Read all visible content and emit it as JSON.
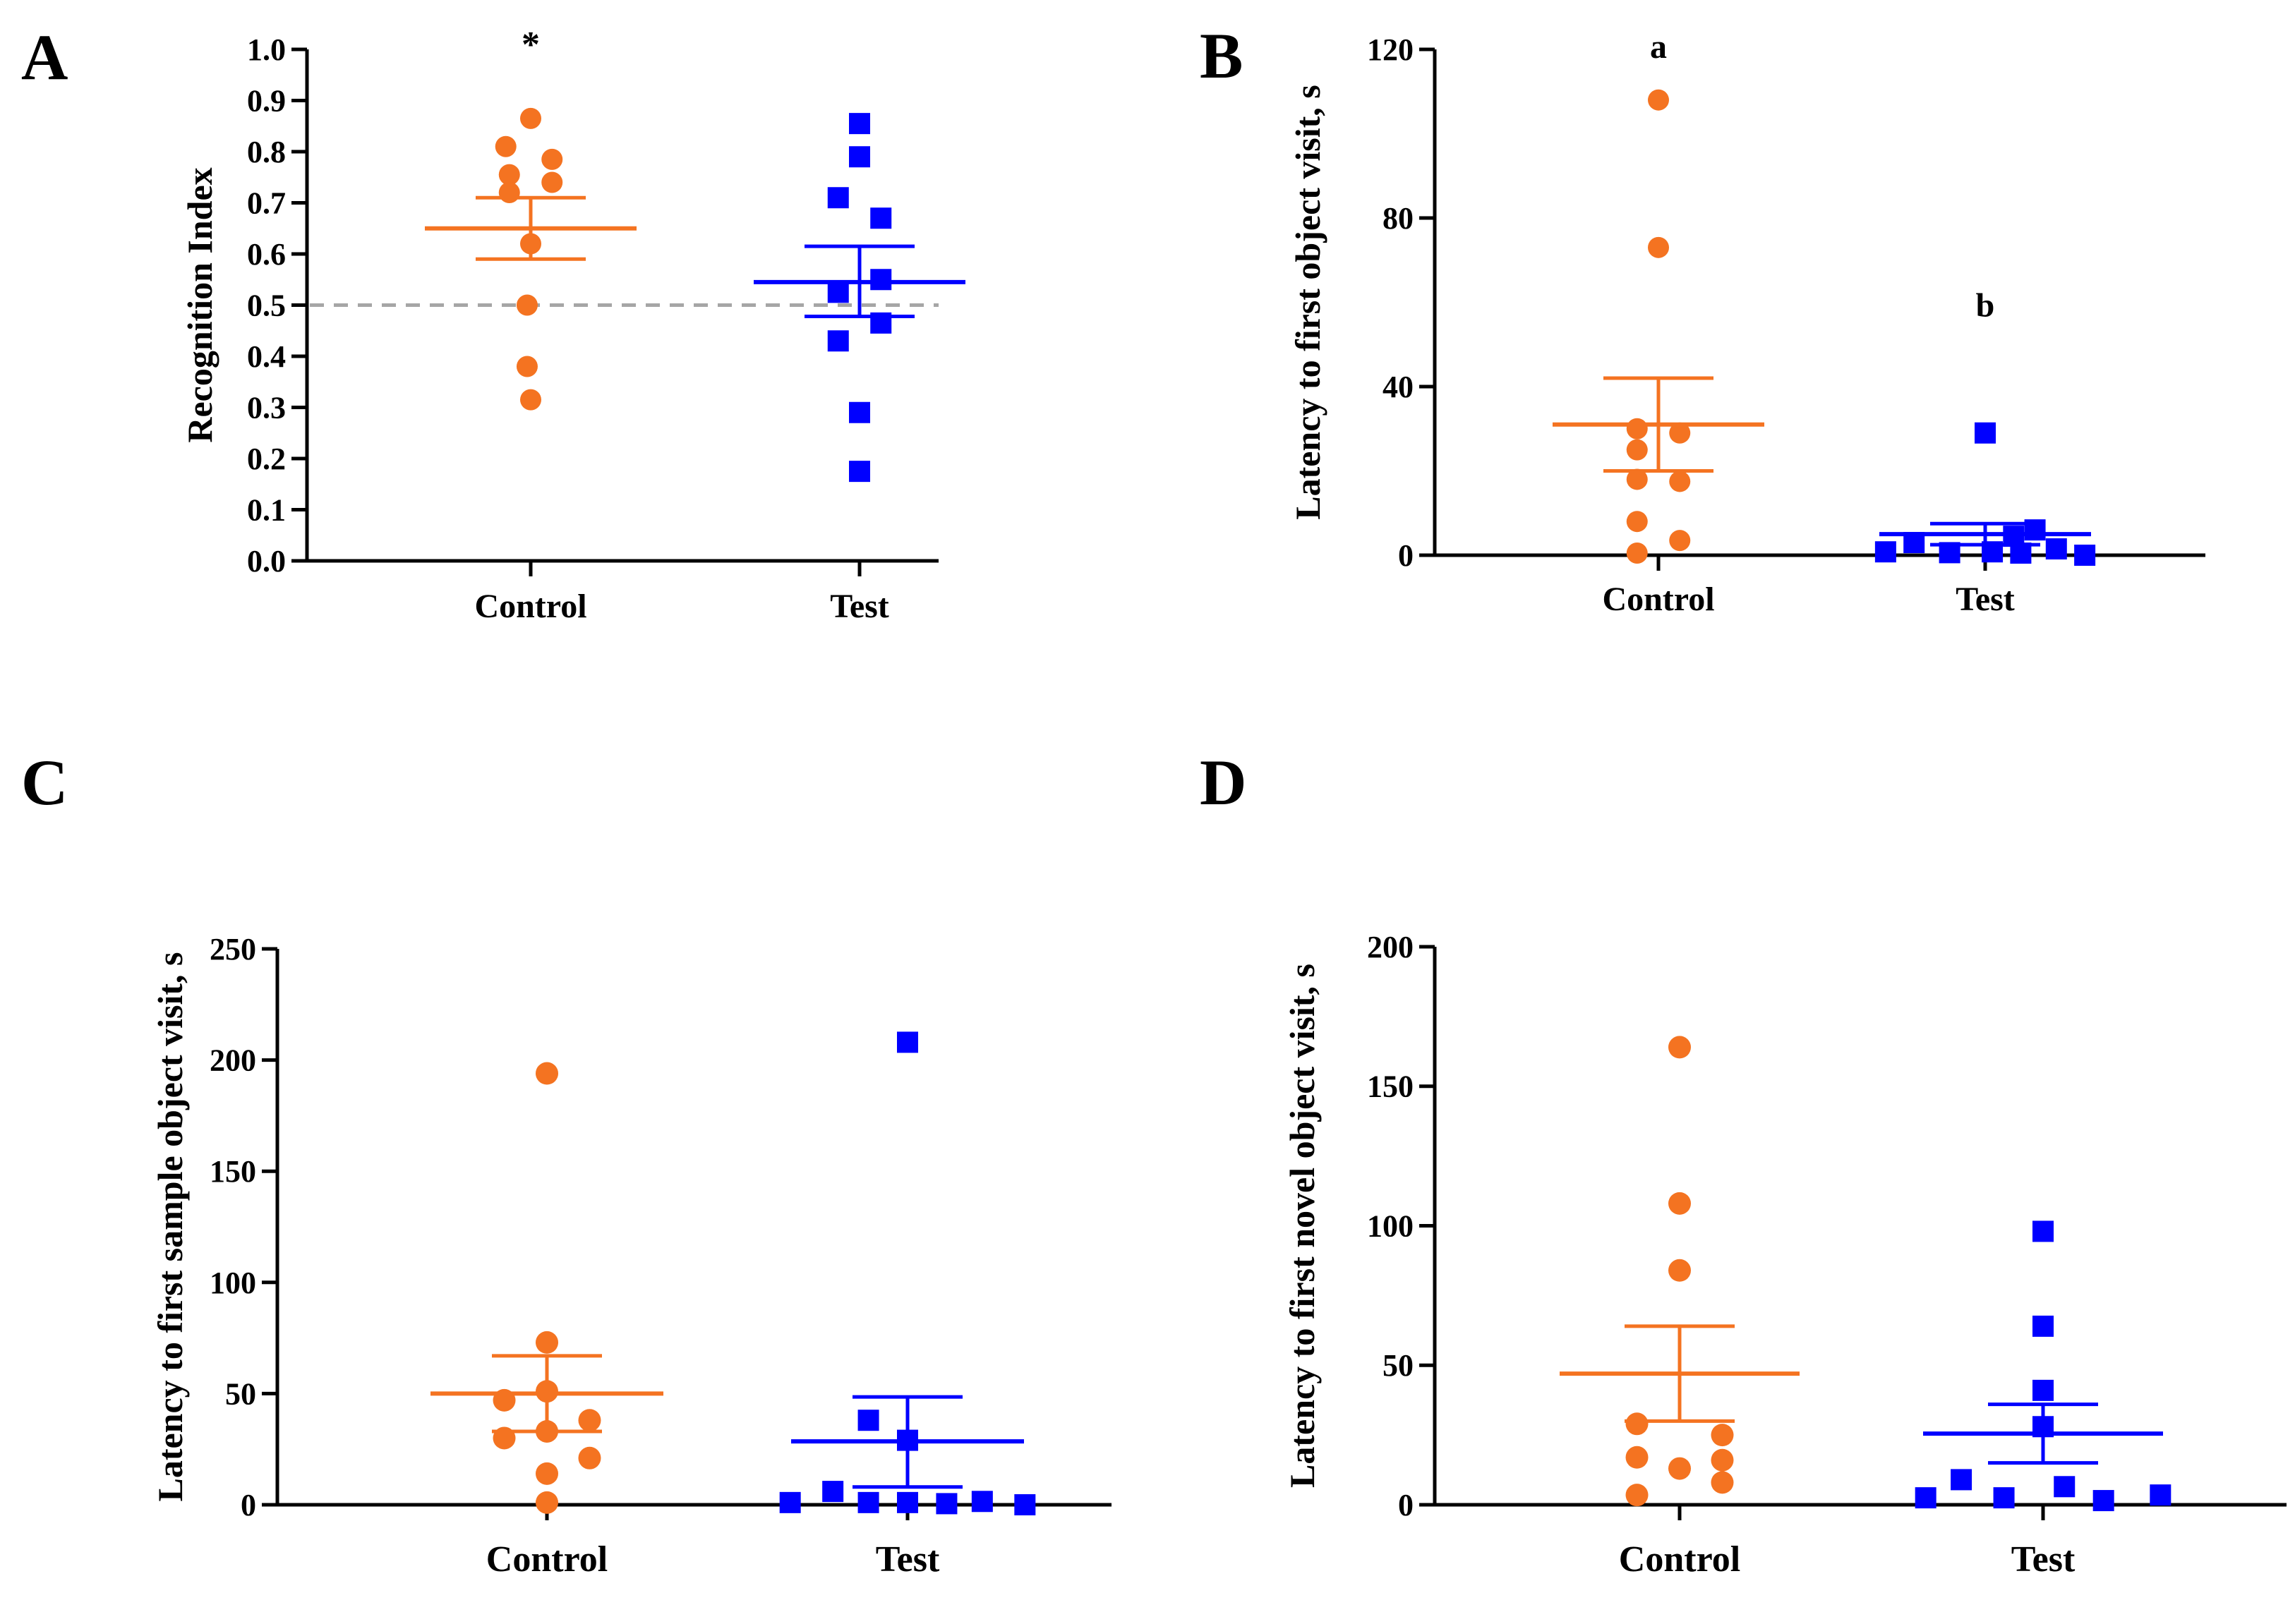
{
  "figure": {
    "colors": {
      "control": "#F47321",
      "test": "#0000FF",
      "axis": "#000000",
      "refline": "#A6A6A6"
    }
  },
  "chart_data": [
    {
      "panel": "A",
      "type": "scatter",
      "ylabel": "Recognition  Index",
      "ylim": [
        0,
        1.0
      ],
      "yticks": [
        0.0,
        0.1,
        0.2,
        0.3,
        0.4,
        0.5,
        0.6,
        0.7,
        0.8,
        0.9,
        1.0
      ],
      "ytick_labels": [
        "0.0",
        "0.1",
        "0.2",
        "0.3",
        "0.4",
        "0.5",
        "0.6",
        "0.7",
        "0.8",
        "0.9",
        "1.0"
      ],
      "categories": [
        "Control",
        "Test"
      ],
      "reference_line": 0.5,
      "series": [
        {
          "name": "Control",
          "marker": "circle",
          "points": [
            [
              0,
              0.865
            ],
            [
              -0.07,
              0.81
            ],
            [
              0.06,
              0.785
            ],
            [
              -0.06,
              0.755
            ],
            [
              0.06,
              0.74
            ],
            [
              -0.06,
              0.72
            ],
            [
              0,
              0.62
            ],
            [
              -0.01,
              0.5
            ],
            [
              -0.01,
              0.38
            ],
            [
              0,
              0.315
            ]
          ],
          "mean": 0.65,
          "sem_upper": 0.71,
          "sem_lower": 0.59,
          "annotation": "*"
        },
        {
          "name": "Test",
          "marker": "square",
          "points": [
            [
              0,
              0.855
            ],
            [
              0,
              0.79
            ],
            [
              -0.06,
              0.71
            ],
            [
              0.06,
              0.67
            ],
            [
              -0.06,
              0.525
            ],
            [
              0.06,
              0.55
            ],
            [
              -0.06,
              0.43
            ],
            [
              0.06,
              0.465
            ],
            [
              0,
              0.29
            ],
            [
              0,
              0.175
            ]
          ],
          "mean": 0.545,
          "sem_upper": 0.615,
          "sem_lower": 0.478
        }
      ]
    },
    {
      "panel": "B",
      "type": "scatter",
      "ylabel": "Latency to first object visit, s",
      "ylim": [
        0,
        120
      ],
      "yticks": [
        0,
        40,
        80,
        120
      ],
      "ytick_labels": [
        "0",
        "40",
        "80",
        "120"
      ],
      "categories": [
        "Control",
        "Test"
      ],
      "series": [
        {
          "name": "Control",
          "marker": "circle",
          "points": [
            [
              0,
              108
            ],
            [
              0,
              73
            ],
            [
              -0.06,
              30
            ],
            [
              0.06,
              29
            ],
            [
              -0.06,
              25
            ],
            [
              -0.06,
              18
            ],
            [
              0.06,
              17.5
            ],
            [
              -0.06,
              8
            ],
            [
              0.06,
              3.5
            ],
            [
              -0.06,
              0.5
            ]
          ],
          "mean": 31,
          "sem_upper": 42,
          "sem_lower": 20,
          "annotation": "a"
        },
        {
          "name": "Test",
          "marker": "square",
          "points": [
            [
              0,
              29
            ],
            [
              -0.28,
              0.8
            ],
            [
              -0.2,
              3
            ],
            [
              -0.1,
              0.6
            ],
            [
              0.02,
              0.8
            ],
            [
              0.08,
              4.5
            ],
            [
              0.14,
              6
            ],
            [
              0.2,
              1.5
            ],
            [
              0.28,
              0
            ],
            [
              0.1,
              0.5
            ]
          ],
          "mean": 5,
          "sem_upper": 7.5,
          "sem_lower": 2.5,
          "annotation": "b"
        }
      ]
    },
    {
      "panel": "C",
      "type": "scatter",
      "ylabel": "Latency to first sample object visit, s",
      "ylim": [
        0,
        250
      ],
      "yticks": [
        0,
        50,
        100,
        150,
        200,
        250
      ],
      "ytick_labels": [
        "0",
        "50",
        "100",
        "150",
        "200",
        "250"
      ],
      "categories": [
        "Control",
        "Test"
      ],
      "series": [
        {
          "name": "Control",
          "marker": "circle",
          "points": [
            [
              0,
              194
            ],
            [
              0,
              73
            ],
            [
              -0.12,
              47
            ],
            [
              0,
              51
            ],
            [
              -0.12,
              30
            ],
            [
              0,
              33
            ],
            [
              0.12,
              38
            ],
            [
              0.12,
              21
            ],
            [
              0,
              14
            ],
            [
              0,
              1
            ]
          ],
          "mean": 50,
          "sem_upper": 67,
          "sem_lower": 33
        },
        {
          "name": "Test",
          "marker": "square",
          "points": [
            [
              0,
              208
            ],
            [
              -0.11,
              38
            ],
            [
              0,
              29
            ],
            [
              -0.21,
              6
            ],
            [
              -0.33,
              1
            ],
            [
              -0.11,
              1
            ],
            [
              0,
              1
            ],
            [
              0.11,
              0.5
            ],
            [
              0.21,
              1.5
            ],
            [
              0.33,
              0
            ]
          ],
          "mean": 28.5,
          "sem_upper": 48.5,
          "sem_lower": 8
        }
      ]
    },
    {
      "panel": "D",
      "type": "scatter",
      "ylabel": "Latency to first novel object visit, s",
      "ylim": [
        0,
        200
      ],
      "yticks": [
        0,
        50,
        100,
        150,
        200
      ],
      "ytick_labels": [
        "0",
        "50",
        "100",
        "150",
        "200"
      ],
      "categories": [
        "Control",
        "Test"
      ],
      "series": [
        {
          "name": "Control",
          "marker": "circle",
          "points": [
            [
              0,
              164
            ],
            [
              0,
              108
            ],
            [
              0,
              84
            ],
            [
              -0.12,
              29
            ],
            [
              0.12,
              25
            ],
            [
              -0.12,
              17
            ],
            [
              0.12,
              16
            ],
            [
              0,
              13
            ],
            [
              0.12,
              8
            ],
            [
              -0.12,
              3.5
            ]
          ],
          "mean": 47,
          "sem_upper": 64,
          "sem_lower": 30
        },
        {
          "name": "Test",
          "marker": "square",
          "points": [
            [
              0,
              98
            ],
            [
              0,
              64
            ],
            [
              0,
              41
            ],
            [
              0,
              28
            ],
            [
              -0.23,
              9
            ],
            [
              -0.33,
              2.5
            ],
            [
              -0.11,
              2.5
            ],
            [
              0.06,
              6.5
            ],
            [
              0.17,
              1.5
            ],
            [
              0.33,
              3.5
            ]
          ],
          "mean": 25.5,
          "sem_upper": 36,
          "sem_lower": 15
        }
      ]
    }
  ]
}
